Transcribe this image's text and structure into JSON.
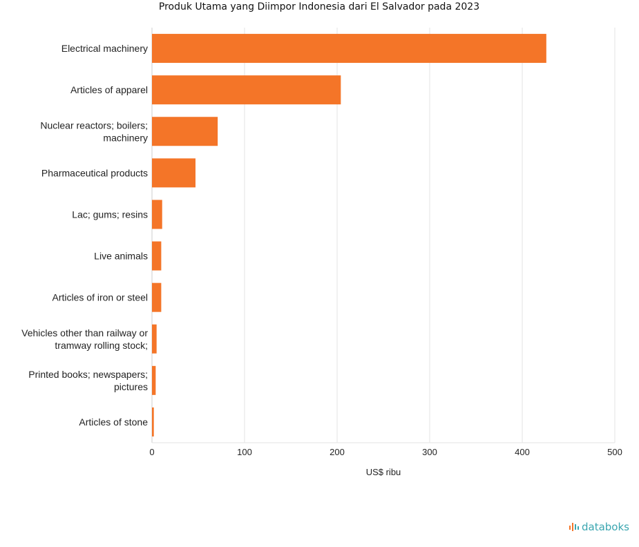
{
  "chart_data": {
    "type": "bar",
    "orientation": "horizontal",
    "title": "Produk Utama yang Diimpor Indonesia dari El Salvador pada 2023",
    "categories": [
      [
        "Electrical machinery"
      ],
      [
        "Articles of apparel"
      ],
      [
        "Nuclear reactors; boilers;",
        "machinery"
      ],
      [
        "Pharmaceutical products"
      ],
      [
        "Lac; gums; resins"
      ],
      [
        "Live animals"
      ],
      [
        "Articles of iron or steel"
      ],
      [
        "Vehicles other than railway or",
        "tramway rolling stock;"
      ],
      [
        "Printed books; newspapers;",
        "pictures"
      ],
      [
        "Articles of stone"
      ]
    ],
    "values": [
      426,
      204,
      71,
      47,
      11,
      10,
      10,
      5,
      4,
      2
    ],
    "xlabel": "US$ ribu",
    "xlim": [
      0,
      500
    ],
    "xticks": [
      0,
      100,
      200,
      300,
      400,
      500
    ],
    "grid": true,
    "bar_color": "#f47528"
  },
  "brand": {
    "name": "databoks",
    "color": "#3aa6b0",
    "accent": "#f47528"
  }
}
